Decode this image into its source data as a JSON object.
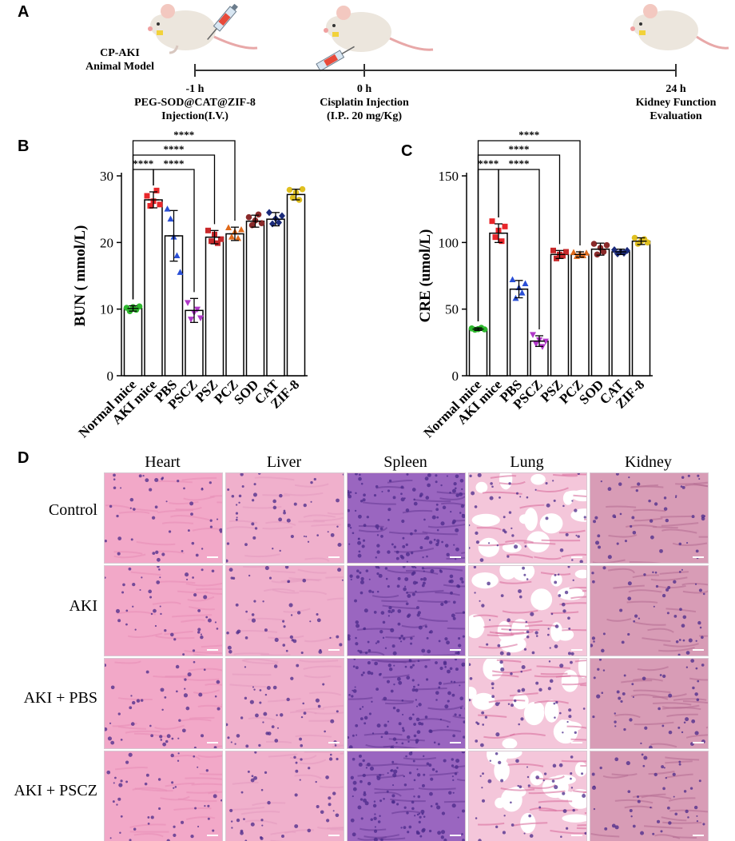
{
  "panel_labels": {
    "a": "A",
    "b": "B",
    "c": "C",
    "d": "D"
  },
  "timeline": {
    "model_title": [
      "CP-AKI",
      "Animal Model"
    ],
    "events": [
      {
        "time": "-1 h",
        "lines": [
          "PEG-SOD@CAT@ZIF-8",
          "Injection(I.V.)"
        ]
      },
      {
        "time": "0 h",
        "lines": [
          "Cisplatin Injection",
          "(I.P.. 20 mg/Kg)"
        ]
      },
      {
        "time": "24 h",
        "lines": [
          "Kidney Function",
          "Evaluation"
        ]
      }
    ]
  },
  "colors": {
    "Normal mice": "#2eb82e",
    "AKI mice": "#e8262a",
    "PBS": "#2a4fd6",
    "PSCZ": "#b038c8",
    "PSZ": "#c8282a",
    "PCZ": "#e06a1a",
    "SOD": "#8a2a2a",
    "CAT": "#1a2a7a",
    "ZIF-8": "#e0c020"
  },
  "chart_data": [
    {
      "type": "bar",
      "ylabel": "BUN ( mmol/L)",
      "categories": [
        "Normal mice",
        "AKI mice",
        "PBS",
        "PSCZ",
        "PSZ",
        "PCZ",
        "SOD",
        "CAT",
        "ZIF-8"
      ],
      "values": [
        10.1,
        26.4,
        21.0,
        9.8,
        20.8,
        21.3,
        23.2,
        23.5,
        27.2
      ],
      "errors": [
        0.4,
        1.2,
        3.8,
        1.8,
        1.0,
        1.0,
        0.9,
        1.0,
        0.8
      ],
      "points": [
        [
          10.2,
          9.7,
          10.3,
          9.9,
          10.4
        ],
        [
          27.0,
          25.5,
          26.2,
          27.8,
          25.7
        ],
        [
          25.0,
          23.5,
          20.8,
          18.0,
          15.5
        ],
        [
          11.0,
          8.5,
          9.5,
          10.0,
          8.7
        ],
        [
          21.8,
          20.2,
          21.2,
          19.9,
          20.5
        ],
        [
          22.2,
          20.8,
          21.6,
          20.6,
          21.9
        ],
        [
          23.8,
          22.6,
          23.3,
          24.2,
          22.9
        ],
        [
          24.5,
          22.8,
          23.6,
          23.0,
          24.0
        ],
        [
          27.9,
          26.7,
          27.5,
          26.4,
          28.0
        ]
      ],
      "ylim": [
        0,
        30
      ],
      "yticks": [
        0,
        10,
        20,
        30
      ],
      "significance": [
        {
          "from": 0,
          "to": 1,
          "label": "****"
        },
        {
          "from": 1,
          "to": 3,
          "label": "****"
        },
        {
          "from": 0,
          "to": 4,
          "label": "****"
        },
        {
          "from": 0,
          "to": 5,
          "label": "****"
        }
      ]
    },
    {
      "type": "bar",
      "ylabel": "CRE (umol/L)",
      "categories": [
        "Normal mice",
        "AKI mice",
        "PBS",
        "PSCZ",
        "PSZ",
        "PCZ",
        "SOD",
        "CAT",
        "ZIF-8"
      ],
      "values": [
        35,
        107,
        65,
        26,
        91,
        91,
        95,
        93,
        101
      ],
      "errors": [
        1.0,
        7.0,
        6.5,
        4.0,
        3.0,
        2.0,
        4.5,
        2.0,
        2.5
      ],
      "points": [
        [
          35.5,
          34.5,
          35.0,
          36.0,
          34.8
        ],
        [
          116,
          104,
          109,
          101,
          112
        ],
        [
          72,
          58,
          66,
          62,
          69
        ],
        [
          31,
          24,
          27,
          22,
          26
        ],
        [
          94,
          88,
          91,
          90,
          93
        ],
        [
          92.5,
          89.5,
          91.5,
          90,
          92
        ],
        [
          99,
          91,
          96,
          93,
          98
        ],
        [
          94.5,
          91.5,
          93,
          92,
          94
        ],
        [
          103.5,
          99,
          101,
          102.5,
          100
        ]
      ],
      "ylim": [
        0,
        150
      ],
      "yticks": [
        0,
        50,
        100,
        150
      ],
      "significance": [
        {
          "from": 0,
          "to": 1,
          "label": "****"
        },
        {
          "from": 1,
          "to": 3,
          "label": "****"
        },
        {
          "from": 0,
          "to": 4,
          "label": "****"
        },
        {
          "from": 0,
          "to": 5,
          "label": "****"
        }
      ]
    }
  ],
  "histology": {
    "columns": [
      "Heart",
      "Liver",
      "Spleen",
      "Lung",
      "Kidney"
    ],
    "rows": [
      "Control",
      "AKI",
      "AKI + PBS",
      "AKI + PSCZ"
    ]
  }
}
